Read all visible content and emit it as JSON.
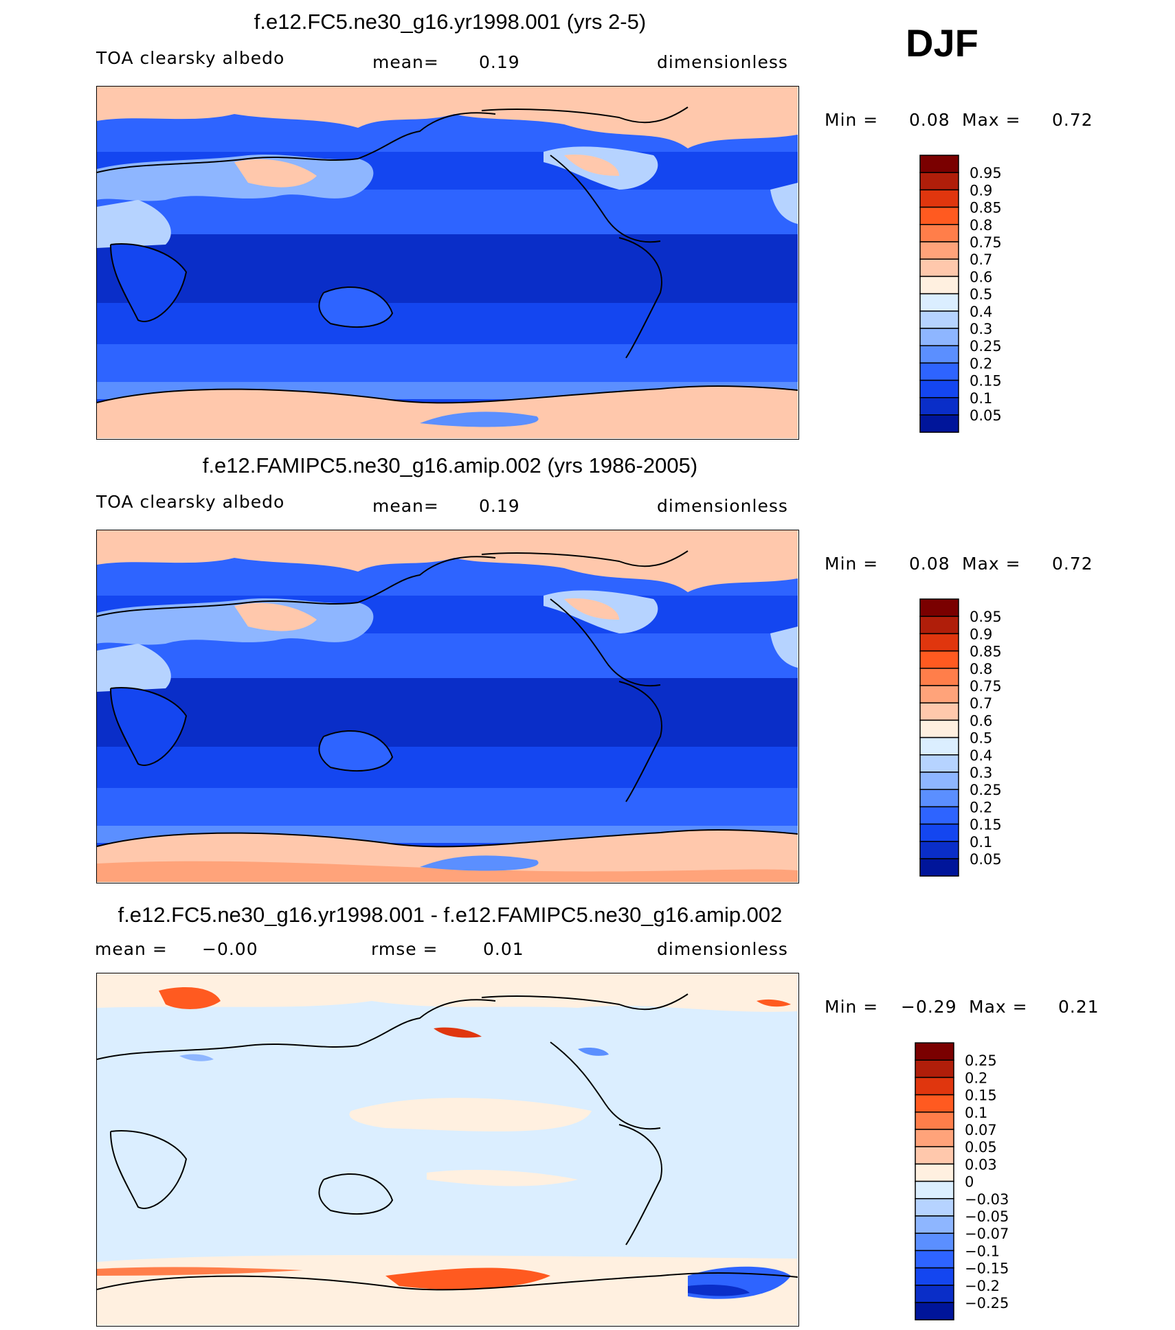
{
  "season": "DJF",
  "chart_data": [
    {
      "type": "heatmap",
      "title": "f.e12.FC5.ne30_g16.yr1998.001 (yrs 2-5)",
      "variable": "TOA clearsky albedo",
      "stat_label": "mean=",
      "stat_value": "0.19",
      "units": "dimensionless",
      "min_label": "Min =",
      "min_value": "0.08",
      "max_label": "Max =",
      "max_value": "0.72",
      "colorbar_labels": [
        "0.95",
        "0.9",
        "0.85",
        "0.8",
        "0.75",
        "0.7",
        "0.6",
        "0.5",
        "0.4",
        "0.3",
        "0.25",
        "0.2",
        "0.15",
        "0.1",
        "0.05"
      ],
      "colorbar_colors": [
        "#7a0000",
        "#b01e0a",
        "#e0360e",
        "#ff5a20",
        "#ff7e4a",
        "#ffa37a",
        "#ffc8ac",
        "#fff0e0",
        "#dbeeff",
        "#b6d3ff",
        "#8eb6ff",
        "#5b8fff",
        "#2e64ff",
        "#1446f0",
        "#0a2ec8",
        "#00159a"
      ]
    },
    {
      "type": "heatmap",
      "title": "f.e12.FAMIPC5.ne30_g16.amip.002 (yrs 1986-2005)",
      "variable": "TOA clearsky albedo",
      "stat_label": "mean=",
      "stat_value": "0.19",
      "units": "dimensionless",
      "min_label": "Min =",
      "min_value": "0.08",
      "max_label": "Max =",
      "max_value": "0.72",
      "colorbar_labels": [
        "0.95",
        "0.9",
        "0.85",
        "0.8",
        "0.75",
        "0.7",
        "0.6",
        "0.5",
        "0.4",
        "0.3",
        "0.25",
        "0.2",
        "0.15",
        "0.1",
        "0.05"
      ],
      "colorbar_colors": [
        "#7a0000",
        "#b01e0a",
        "#e0360e",
        "#ff5a20",
        "#ff7e4a",
        "#ffa37a",
        "#ffc8ac",
        "#fff0e0",
        "#dbeeff",
        "#b6d3ff",
        "#8eb6ff",
        "#5b8fff",
        "#2e64ff",
        "#1446f0",
        "#0a2ec8",
        "#00159a"
      ]
    },
    {
      "type": "heatmap",
      "title": "f.e12.FC5.ne30_g16.yr1998.001 - f.e12.FAMIPC5.ne30_g16.amip.002",
      "variable": "",
      "stat_label": "mean =",
      "stat_value": "−0.00",
      "stat2_label": "rmse =",
      "stat2_value": "0.01",
      "units": "dimensionless",
      "min_label": "Min =",
      "min_value": "−0.29",
      "max_label": "Max =",
      "max_value": "0.21",
      "colorbar_labels": [
        "0.25",
        "0.2",
        "0.15",
        "0.1",
        "0.07",
        "0.05",
        "0.03",
        "0",
        "−0.03",
        "−0.05",
        "−0.07",
        "−0.1",
        "−0.15",
        "−0.2",
        "−0.25"
      ],
      "colorbar_colors": [
        "#7a0000",
        "#b01e0a",
        "#e0360e",
        "#ff5a20",
        "#ff7e4a",
        "#ffa37a",
        "#ffc8ac",
        "#fff0e0",
        "#dbeeff",
        "#b6d3ff",
        "#8eb6ff",
        "#5b8fff",
        "#2e64ff",
        "#1446f0",
        "#0a2ec8",
        "#00159a"
      ]
    }
  ]
}
